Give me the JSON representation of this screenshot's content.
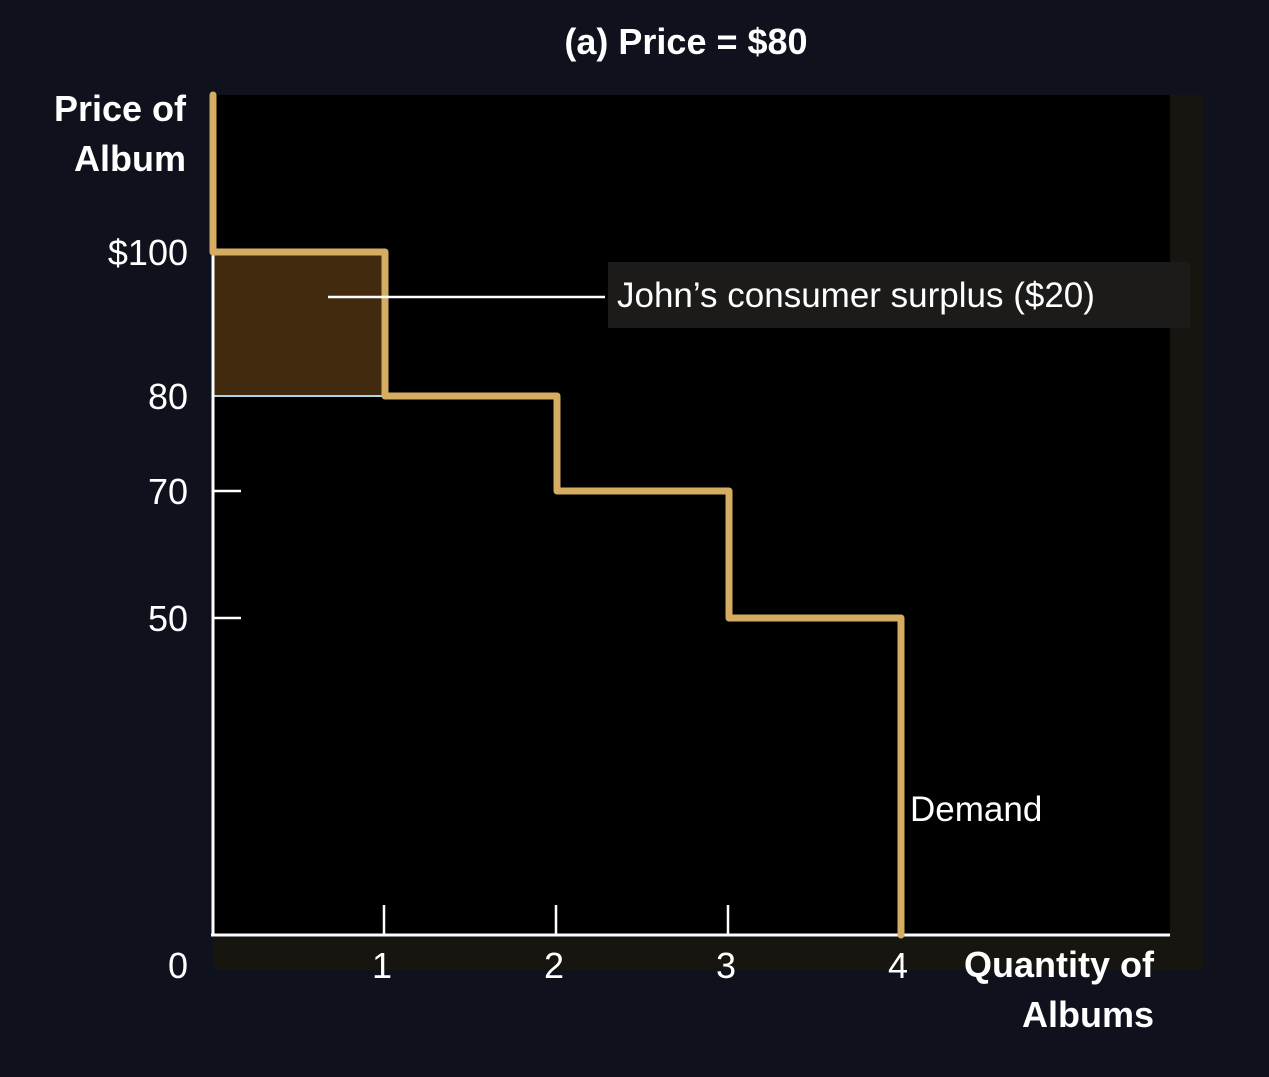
{
  "chart_data": {
    "type": "line",
    "title": "(a) Price = $80",
    "ylabel_lines": [
      "Price of",
      "Album"
    ],
    "xlabel_lines": [
      "Quantity of",
      "Albums"
    ],
    "origin_label": "0",
    "x_ticks": [
      {
        "value": 1,
        "label": "1"
      },
      {
        "value": 2,
        "label": "2"
      },
      {
        "value": 3,
        "label": "3"
      },
      {
        "value": 4,
        "label": "4"
      }
    ],
    "y_ticks": [
      {
        "value": 100,
        "label": "$100"
      },
      {
        "value": 80,
        "label": "80"
      },
      {
        "value": 70,
        "label": "70"
      },
      {
        "value": 50,
        "label": "50"
      }
    ],
    "series": [
      {
        "name": "Demand",
        "step_points": [
          [
            0,
            100
          ],
          [
            1,
            100
          ],
          [
            1,
            80
          ],
          [
            2,
            80
          ],
          [
            2,
            70
          ],
          [
            3,
            70
          ],
          [
            3,
            50
          ],
          [
            4,
            50
          ],
          [
            4,
            0
          ]
        ]
      }
    ],
    "price": 80,
    "surplus_region": {
      "x": [
        0,
        1
      ],
      "y": [
        80,
        100
      ]
    },
    "surplus_label": "John’s consumer surplus ($20)",
    "colors": {
      "background": "#0f111c",
      "plot_background": "#000000",
      "demand": "#d4ad62",
      "surplus": "#422a0f",
      "price_line": "#a8d8e8",
      "axis": "#ffffff"
    }
  }
}
